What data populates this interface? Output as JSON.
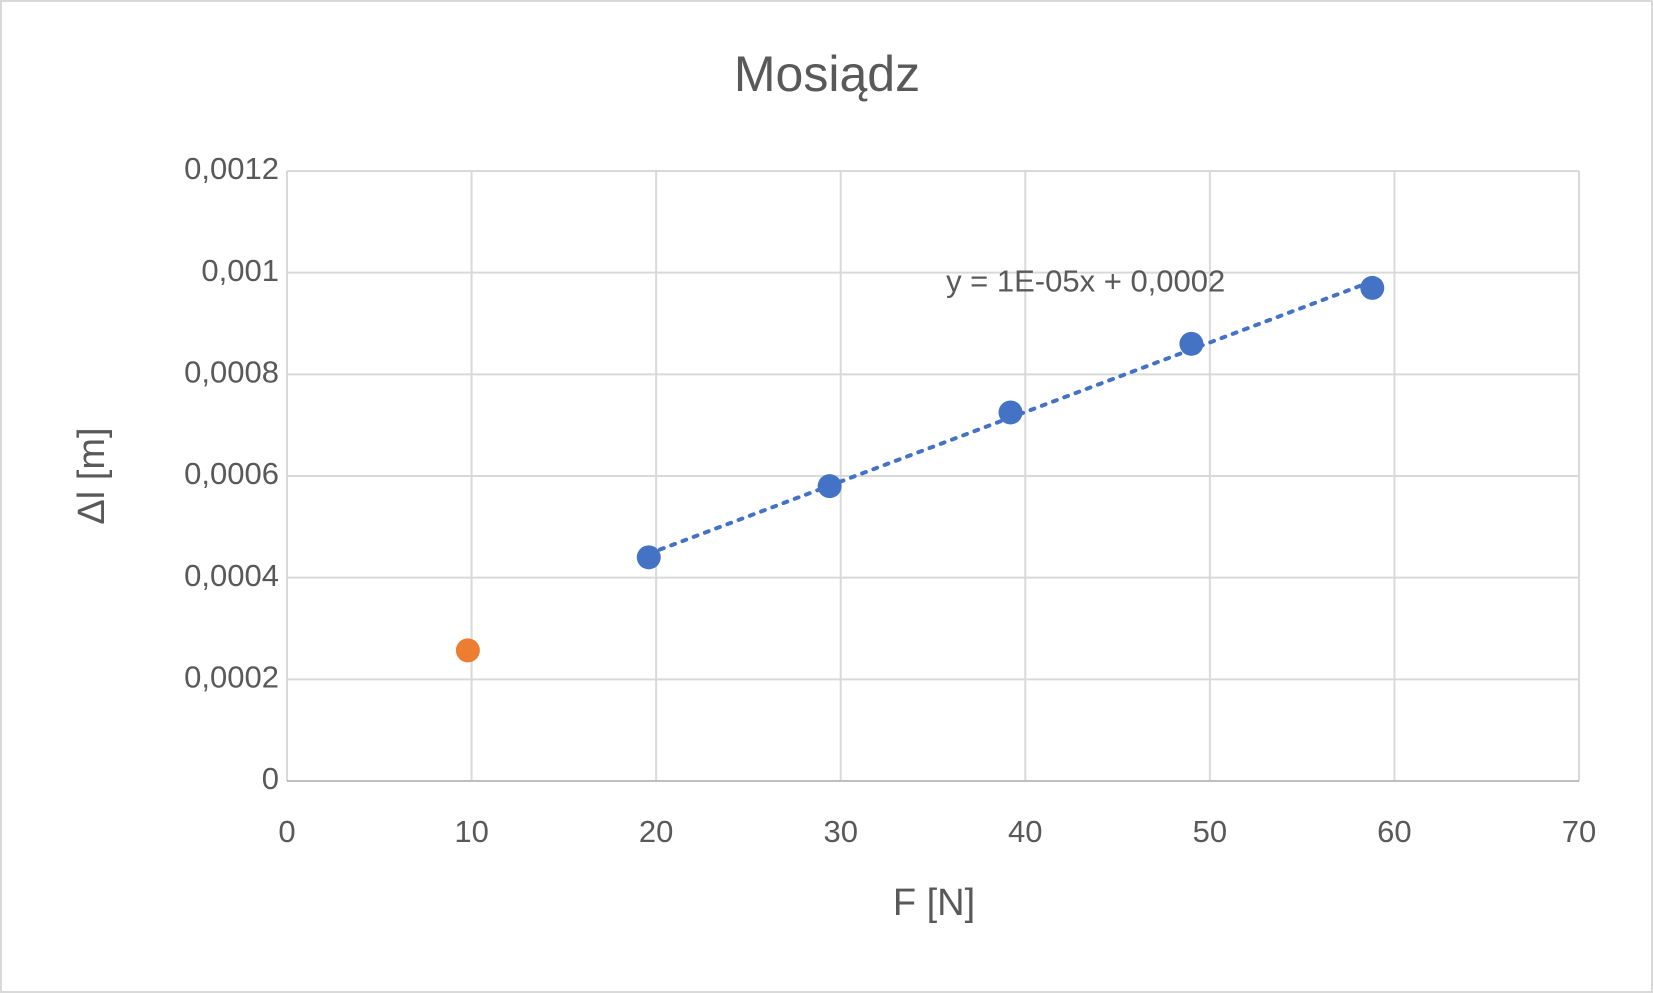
{
  "chart_data": {
    "type": "scatter",
    "title": "Mosiądz",
    "x_label": "F [N]",
    "y_label": "Δl [m]",
    "xlim": [
      0,
      70
    ],
    "xticks": [
      0,
      10,
      20,
      30,
      40,
      50,
      60,
      70
    ],
    "ylim": [
      0,
      0.0012
    ],
    "yticks": [
      0,
      {
        "value": 0.0002,
        "label": "0,0002"
      },
      {
        "value": 0.0004,
        "label": "0,0004"
      },
      {
        "value": 0.0006,
        "label": "0,0006"
      },
      {
        "value": 0.0008,
        "label": "0,0008"
      },
      {
        "value": 0.001,
        "label": "0,001"
      },
      {
        "value": 0.0012,
        "label": "0,0012"
      }
    ],
    "grid": true,
    "series": [
      {
        "color": "#4472c4",
        "x": [
          19.6,
          29.4,
          39.2,
          49.0,
          58.8
        ],
        "values": [
          0.00044,
          0.00058,
          0.000725,
          0.00086,
          0.00097
        ],
        "trendline": "linear",
        "trendline_label": "y = 1E-05x + 0,0002"
      },
      {
        "color": "#ed7d31",
        "x": [
          9.8
        ],
        "values": [
          0.000257
        ]
      }
    ]
  }
}
